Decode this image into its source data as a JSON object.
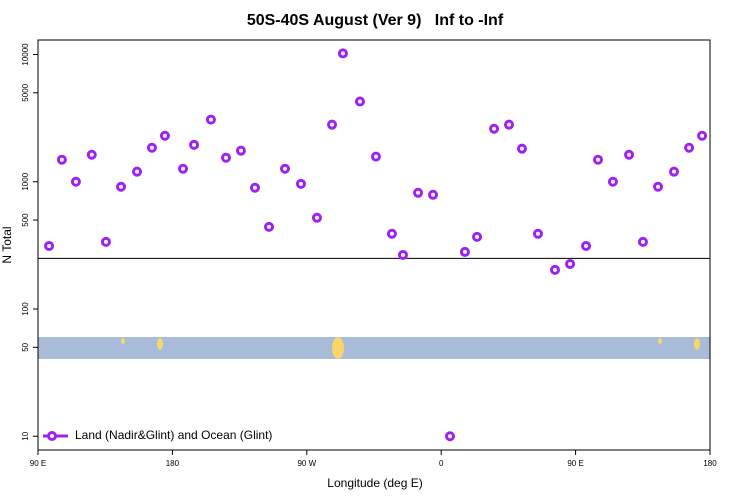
{
  "chart_data": {
    "type": "scatter",
    "title": "50S-40S August (Ver 9)   Inf to -Inf",
    "x_label": "Longitude (deg E)",
    "y_label": "N Total",
    "log_y": true,
    "xlim": [
      90,
      540
    ],
    "xticks": [
      {
        "value": 90,
        "label": "90 E"
      },
      {
        "value": 180,
        "label": "180"
      },
      {
        "value": 270,
        "label": "90 W"
      },
      {
        "value": 360,
        "label": "0"
      },
      {
        "value": 450,
        "label": "90 E"
      },
      {
        "value": 540,
        "label": "180"
      }
    ],
    "ylim": [
      7.8,
      13000
    ],
    "yticks": [
      10,
      50,
      100,
      500,
      1000,
      5000,
      10000
    ],
    "hline": 250,
    "legend": "bottom-left",
    "series": [
      {
        "name": "Land (Nadir&Glint) and Ocean (Glint)",
        "color": "#a020f0",
        "x": [
          97.4,
          106,
          115.4,
          126,
          135.5,
          145.6,
          156.3,
          166.3,
          175,
          187.1,
          194.5,
          205.8,
          215.9,
          225.9,
          235.3,
          244.7,
          255.4,
          266.1,
          276.8,
          286.9,
          294.2,
          305.6,
          316.3,
          327,
          334.4,
          344.5,
          354.5,
          365.9,
          375.9,
          384,
          395.4,
          405.4,
          414.1,
          424.8,
          436.2,
          446.3,
          457,
          465,
          475,
          485.8,
          495.1,
          505.2,
          515.9,
          526,
          534.7
        ],
        "values": [
          313,
          1490,
          1000,
          1630,
          337,
          914,
          1200,
          1850,
          2300,
          1265,
          1950,
          3080,
          1545,
          1755,
          898,
          442,
          1265,
          963,
          521,
          2810,
          10200,
          4270,
          1575,
          390,
          266,
          819,
          790,
          10,
          281,
          369,
          2610,
          2810,
          1820,
          390,
          203,
          226,
          313,
          1490,
          1000,
          1630,
          337,
          914,
          1200,
          1850,
          2300
        ]
      }
    ]
  }
}
